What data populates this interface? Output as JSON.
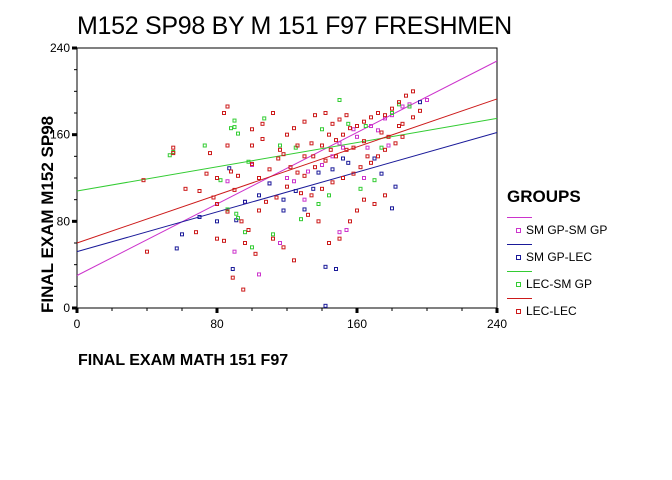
{
  "title": "M152 SP98 BY M 151 F97 FRESHMEN",
  "chart_data": {
    "type": "scatter",
    "title": "M152 SP98 BY M 151 F97 FRESHMEN",
    "xlabel": "FINAL EXAM MATH 151 F97",
    "ylabel": "FINAL EXAM M152 SP98",
    "xlim": [
      0,
      240
    ],
    "ylim": [
      0,
      240
    ],
    "xticks": [
      0,
      80,
      160,
      240
    ],
    "yticks": [
      0,
      80,
      160,
      240
    ],
    "grid": false,
    "legend_title": "GROUPS",
    "legend_position": "right",
    "series": [
      {
        "name": "SM GP-SM GP",
        "color": "#cc33cc",
        "fit_line": {
          "x": [
            0,
            240
          ],
          "y": [
            30,
            228
          ]
        },
        "points": [
          [
            86,
            117
          ],
          [
            124,
            117
          ],
          [
            100,
            132
          ],
          [
            146,
            140
          ],
          [
            152,
            148
          ],
          [
            158,
            165
          ],
          [
            168,
            168
          ],
          [
            176,
            175
          ],
          [
            186,
            186
          ],
          [
            190,
            188
          ],
          [
            200,
            192
          ],
          [
            180,
            178
          ],
          [
            172,
            164
          ],
          [
            160,
            158
          ],
          [
            150,
            152
          ],
          [
            140,
            132
          ],
          [
            132,
            126
          ],
          [
            120,
            120
          ],
          [
            110,
            115
          ],
          [
            96,
            98
          ],
          [
            90,
            52
          ],
          [
            116,
            60
          ],
          [
            104,
            31
          ],
          [
            150,
            70
          ],
          [
            154,
            72
          ],
          [
            130,
            100
          ],
          [
            166,
            148
          ],
          [
            178,
            150
          ],
          [
            164,
            120
          ]
        ]
      },
      {
        "name": "SM GP-LEC",
        "color": "#1a1a99",
        "fit_line": {
          "x": [
            0,
            240
          ],
          "y": [
            52,
            162
          ]
        },
        "points": [
          [
            87,
            129
          ],
          [
            57,
            55
          ],
          [
            89,
            36
          ],
          [
            91,
            81
          ],
          [
            96,
            98
          ],
          [
            130,
            91
          ],
          [
            155,
            134
          ],
          [
            110,
            115
          ],
          [
            118,
            100
          ],
          [
            125,
            108
          ],
          [
            138,
            125
          ],
          [
            146,
            128
          ],
          [
            152,
            138
          ],
          [
            170,
            138
          ],
          [
            174,
            124
          ],
          [
            142,
            38
          ],
          [
            148,
            36
          ],
          [
            142,
            2
          ],
          [
            180,
            92
          ],
          [
            182,
            112
          ],
          [
            196,
            190
          ],
          [
            60,
            68
          ],
          [
            80,
            80
          ],
          [
            70,
            84
          ],
          [
            104,
            104
          ],
          [
            118,
            90
          ],
          [
            135,
            110
          ]
        ]
      },
      {
        "name": "LEC-SM GP",
        "color": "#33cc33",
        "fit_line": {
          "x": [
            0,
            240
          ],
          "y": [
            108,
            175
          ]
        },
        "points": [
          [
            53,
            141
          ],
          [
            55,
            144
          ],
          [
            73,
            150
          ],
          [
            82,
            118
          ],
          [
            92,
            161
          ],
          [
            90,
            173
          ],
          [
            90,
            167
          ],
          [
            88,
            166
          ],
          [
            98,
            135
          ],
          [
            86,
            91
          ],
          [
            92,
            83
          ],
          [
            91,
            87
          ],
          [
            107,
            175
          ],
          [
            116,
            150
          ],
          [
            125,
            148
          ],
          [
            140,
            165
          ],
          [
            150,
            192
          ],
          [
            155,
            170
          ],
          [
            165,
            168
          ],
          [
            180,
            180
          ],
          [
            184,
            188
          ],
          [
            190,
            186
          ],
          [
            162,
            110
          ],
          [
            170,
            118
          ],
          [
            144,
            104
          ],
          [
            138,
            96
          ],
          [
            128,
            82
          ],
          [
            112,
            68
          ],
          [
            100,
            56
          ],
          [
            96,
            70
          ],
          [
            174,
            148
          ]
        ]
      },
      {
        "name": "LEC-LEC",
        "color": "#cc1a1a",
        "fit_line": {
          "x": [
            0,
            240
          ],
          "y": [
            60,
            193
          ]
        },
        "points": [
          [
            38,
            118
          ],
          [
            55,
            148
          ],
          [
            55,
            143
          ],
          [
            76,
            143
          ],
          [
            80,
            120
          ],
          [
            86,
            150
          ],
          [
            90,
            109
          ],
          [
            86,
            89
          ],
          [
            80,
            64
          ],
          [
            84,
            62
          ],
          [
            89,
            28
          ],
          [
            95,
            17
          ],
          [
            80,
            96
          ],
          [
            92,
            122
          ],
          [
            100,
            133
          ],
          [
            104,
            120
          ],
          [
            110,
            128
          ],
          [
            115,
            138
          ],
          [
            118,
            142
          ],
          [
            122,
            130
          ],
          [
            126,
            125
          ],
          [
            130,
            122
          ],
          [
            135,
            140
          ],
          [
            140,
            150
          ],
          [
            145,
            146
          ],
          [
            148,
            155
          ],
          [
            152,
            160
          ],
          [
            156,
            166
          ],
          [
            160,
            168
          ],
          [
            164,
            172
          ],
          [
            168,
            176
          ],
          [
            172,
            180
          ],
          [
            176,
            178
          ],
          [
            180,
            184
          ],
          [
            184,
            190
          ],
          [
            188,
            196
          ],
          [
            192,
            200
          ],
          [
            120,
            160
          ],
          [
            124,
            166
          ],
          [
            130,
            172
          ],
          [
            136,
            178
          ],
          [
            142,
            180
          ],
          [
            146,
            170
          ],
          [
            150,
            174
          ],
          [
            154,
            178
          ],
          [
            112,
            180
          ],
          [
            106,
            170
          ],
          [
            100,
            165
          ],
          [
            96,
            60
          ],
          [
            104,
            90
          ],
          [
            108,
            98
          ],
          [
            114,
            102
          ],
          [
            120,
            112
          ],
          [
            128,
            106
          ],
          [
            134,
            104
          ],
          [
            140,
            110
          ],
          [
            146,
            116
          ],
          [
            152,
            120
          ],
          [
            158,
            124
          ],
          [
            162,
            130
          ],
          [
            168,
            134
          ],
          [
            172,
            140
          ],
          [
            176,
            146
          ],
          [
            182,
            152
          ],
          [
            186,
            158
          ],
          [
            118,
            56
          ],
          [
            124,
            44
          ],
          [
            112,
            64
          ],
          [
            132,
            86
          ],
          [
            138,
            80
          ],
          [
            144,
            60
          ],
          [
            150,
            64
          ],
          [
            156,
            80
          ],
          [
            160,
            90
          ],
          [
            164,
            100
          ],
          [
            170,
            96
          ],
          [
            176,
            104
          ],
          [
            100,
            150
          ],
          [
            106,
            156
          ],
          [
            116,
            146
          ],
          [
            126,
            150
          ],
          [
            134,
            152
          ],
          [
            144,
            160
          ],
          [
            154,
            146
          ],
          [
            164,
            154
          ],
          [
            174,
            162
          ],
          [
            184,
            168
          ],
          [
            62,
            110
          ],
          [
            70,
            108
          ],
          [
            74,
            124
          ],
          [
            78,
            102
          ],
          [
            40,
            52
          ],
          [
            88,
            126
          ],
          [
            94,
            80
          ],
          [
            98,
            72
          ],
          [
            102,
            50
          ],
          [
            68,
            70
          ],
          [
            84,
            180
          ],
          [
            86,
            186
          ],
          [
            130,
            140
          ],
          [
            136,
            130
          ],
          [
            142,
            136
          ],
          [
            148,
            140
          ],
          [
            158,
            148
          ],
          [
            166,
            140
          ],
          [
            178,
            158
          ],
          [
            186,
            170
          ],
          [
            192,
            176
          ],
          [
            196,
            182
          ]
        ]
      }
    ]
  }
}
